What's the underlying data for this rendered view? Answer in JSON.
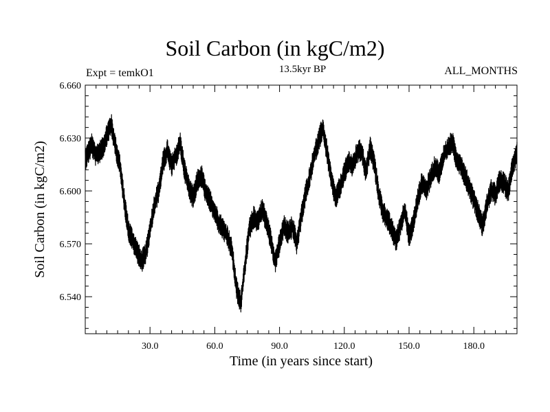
{
  "chart_data": {
    "type": "line",
    "title": "Soil Carbon (in kgC/m2)",
    "subtitle_left": "Expt = temkO1",
    "subtitle_center": "13.5kyr BP",
    "subtitle_right": "ALL_MONTHS",
    "xlabel": "Time (in years since start)",
    "ylabel": "Soil Carbon (in kgC/m2)",
    "xlim": [
      0,
      200
    ],
    "ylim": [
      6.519,
      6.66
    ],
    "xticks": [
      30,
      60,
      90,
      120,
      150,
      180
    ],
    "xtick_labels": [
      "30.0",
      "60.0",
      "90.0",
      "120.0",
      "150.0",
      "180.0"
    ],
    "yticks": [
      6.54,
      6.57,
      6.6,
      6.63,
      6.66
    ],
    "ytick_labels": [
      "6.540",
      "6.570",
      "6.600",
      "6.630",
      "6.660"
    ],
    "series": [
      {
        "name": "Soil Carbon",
        "color": "#000000",
        "x": [
          0,
          3,
          5,
          8,
          10,
          12,
          14,
          16,
          18,
          20,
          22,
          24,
          26,
          28,
          30,
          32,
          34,
          36,
          38,
          40,
          42,
          44,
          46,
          48,
          50,
          52,
          54,
          56,
          58,
          60,
          62,
          64,
          66,
          68,
          70,
          72,
          74,
          76,
          78,
          80,
          82,
          84,
          86,
          88,
          90,
          92,
          94,
          96,
          98,
          100,
          102,
          104,
          106,
          108,
          110,
          112,
          114,
          116,
          118,
          120,
          122,
          124,
          126,
          128,
          130,
          132,
          134,
          136,
          138,
          140,
          142,
          144,
          146,
          148,
          150,
          152,
          154,
          156,
          158,
          160,
          162,
          164,
          166,
          168,
          170,
          172,
          174,
          176,
          178,
          180,
          182,
          184,
          186,
          188,
          190,
          192,
          194,
          196,
          198,
          200
        ],
        "y": [
          6.618,
          6.626,
          6.62,
          6.624,
          6.632,
          6.638,
          6.625,
          6.615,
          6.595,
          6.578,
          6.572,
          6.566,
          6.56,
          6.564,
          6.578,
          6.592,
          6.6,
          6.616,
          6.623,
          6.614,
          6.62,
          6.627,
          6.612,
          6.602,
          6.596,
          6.606,
          6.608,
          6.598,
          6.594,
          6.588,
          6.582,
          6.578,
          6.574,
          6.566,
          6.545,
          6.536,
          6.558,
          6.578,
          6.585,
          6.583,
          6.59,
          6.582,
          6.572,
          6.56,
          6.57,
          6.58,
          6.576,
          6.58,
          6.57,
          6.585,
          6.598,
          6.608,
          6.62,
          6.628,
          6.636,
          6.622,
          6.606,
          6.596,
          6.602,
          6.61,
          6.617,
          6.614,
          6.622,
          6.623,
          6.61,
          6.625,
          6.615,
          6.598,
          6.588,
          6.584,
          6.578,
          6.572,
          6.58,
          6.59,
          6.574,
          6.582,
          6.595,
          6.605,
          6.6,
          6.608,
          6.614,
          6.61,
          6.62,
          6.624,
          6.628,
          6.618,
          6.615,
          6.608,
          6.602,
          6.595,
          6.588,
          6.58,
          6.592,
          6.6,
          6.598,
          6.606,
          6.604,
          6.6,
          6.615,
          6.622
        ]
      }
    ]
  }
}
